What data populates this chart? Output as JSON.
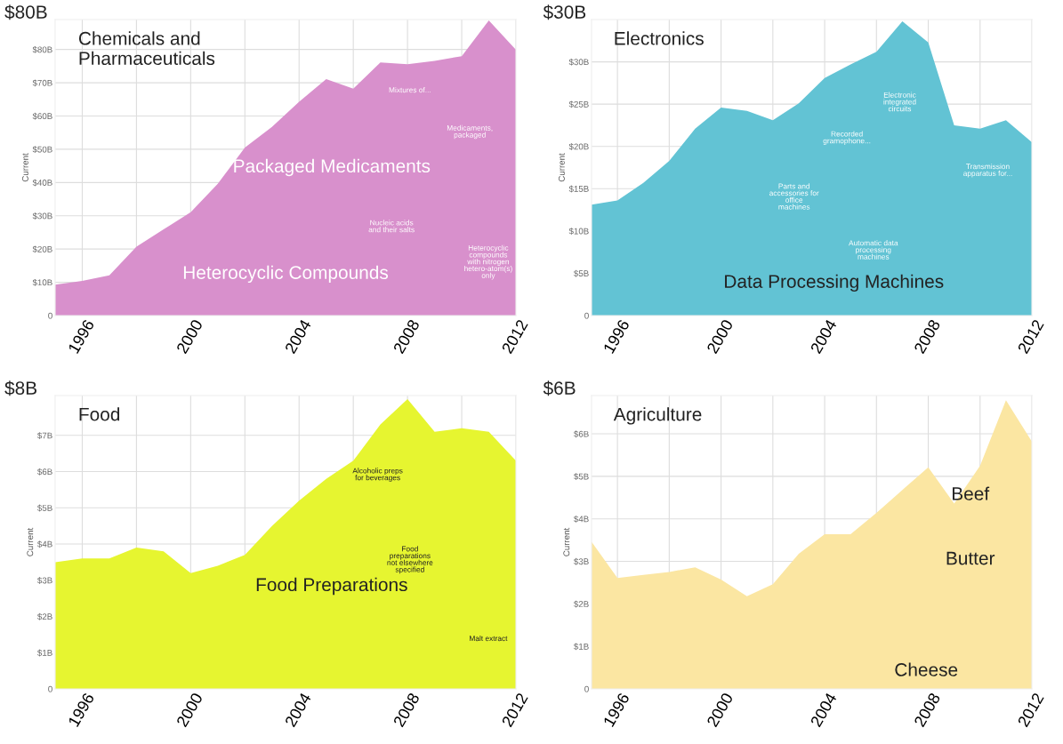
{
  "chart_data": [
    {
      "type": "area",
      "title": "Chemicals and\nPharmaceuticals",
      "ylabel": "Current",
      "x": [
        1995,
        1996,
        1997,
        1998,
        1999,
        2000,
        2001,
        2002,
        2003,
        2004,
        2005,
        2006,
        2007,
        2008,
        2009,
        2010,
        2011,
        2012
      ],
      "series": [
        {
          "color": "#d890cc",
          "values": [
            9.3,
            10.4,
            12.1,
            20.7,
            25.9,
            31.1,
            39.6,
            50.5,
            56.7,
            64.3,
            71.1,
            68.2,
            76.1,
            75.6,
            76.6,
            78.0,
            88.7,
            79.9
          ]
        }
      ],
      "xlim": [
        1995,
        2012
      ],
      "xticks": [
        1996,
        {
          "value": 1998,
          "label": null
        },
        2000,
        {
          "value": 2002,
          "label": null
        },
        2004,
        {
          "value": 2006,
          "label": null
        },
        2008,
        {
          "value": 2010,
          "label": null
        },
        2012
      ],
      "ylim": [
        0,
        89
      ],
      "yticks": [
        0,
        {
          "value": 10,
          "label": "$10B"
        },
        {
          "value": 20,
          "label": "$20B"
        },
        {
          "value": 30,
          "label": "$30B"
        },
        {
          "value": 40,
          "label": "$40B"
        },
        {
          "value": 50,
          "label": "$50B"
        },
        {
          "value": 60,
          "label": "$60B"
        },
        {
          "value": 70,
          "label": "$70B"
        },
        {
          "value": 80,
          "label": "$80B"
        }
      ],
      "grid": true,
      "legend": false,
      "annotations": [
        "$80B",
        "Packaged Medicaments",
        "Heterocyclic Compounds",
        "Mixtures of...",
        "Medicaments,\npackaged",
        "Nucleic acids\nand their salts",
        "Heterocyclic\ncompounds\nwith nitrogen\nhetero-atom(s)\nonly"
      ]
    },
    {
      "type": "area",
      "title": "Electronics",
      "ylabel": "Current",
      "x": [
        1995,
        1996,
        1997,
        1998,
        1999,
        2000,
        2001,
        2002,
        2003,
        2004,
        2005,
        2006,
        2007,
        2008,
        2009,
        2010,
        2011,
        2012
      ],
      "series": [
        {
          "color": "#62c3d4",
          "values": [
            13.1,
            13.6,
            15.7,
            18.3,
            22.1,
            24.6,
            24.2,
            23.1,
            25.1,
            28.1,
            29.7,
            31.2,
            34.8,
            32.3,
            22.5,
            22.1,
            23.1,
            20.5
          ]
        }
      ],
      "xlim": [
        1995,
        2012
      ],
      "xticks": [
        1996,
        {
          "value": 1998,
          "label": null
        },
        2000,
        {
          "value": 2002,
          "label": null
        },
        2004,
        {
          "value": 2006,
          "label": null
        },
        2008,
        {
          "value": 2010,
          "label": null
        },
        2012
      ],
      "ylim": [
        0,
        35
      ],
      "yticks": [
        0,
        {
          "value": 5,
          "label": "$5B"
        },
        {
          "value": 10,
          "label": "$10B"
        },
        {
          "value": 15,
          "label": "$15B"
        },
        {
          "value": 20,
          "label": "$20B"
        },
        {
          "value": 25,
          "label": "$25B"
        },
        {
          "value": 30,
          "label": "$30B"
        }
      ],
      "grid": true,
      "legend": false,
      "annotations": [
        "$30B",
        "Data Processing Machines",
        "Electronic\nintegrated\ncircuits",
        "Recorded\ngramophone...",
        "Parts and\naccessories for\noffice\nmachines",
        "Automatic data\nprocessing\nmachines",
        "Transmission\napparatus for..."
      ]
    },
    {
      "type": "area",
      "title": "Food",
      "ylabel": "Current",
      "x": [
        1995,
        1996,
        1997,
        1998,
        1999,
        2000,
        2001,
        2002,
        2003,
        2004,
        2005,
        2006,
        2007,
        2008,
        2009,
        2010,
        2011,
        2012
      ],
      "series": [
        {
          "color": "#e6f530",
          "values": [
            3.5,
            3.6,
            3.6,
            3.9,
            3.8,
            3.2,
            3.4,
            3.7,
            4.5,
            5.2,
            5.8,
            6.3,
            7.3,
            8.0,
            7.1,
            7.2,
            7.1,
            6.3
          ]
        }
      ],
      "xlim": [
        1995,
        2012
      ],
      "xticks": [
        1996,
        {
          "value": 1998,
          "label": null
        },
        2000,
        {
          "value": 2002,
          "label": null
        },
        2004,
        {
          "value": 2006,
          "label": null
        },
        2008,
        {
          "value": 2010,
          "label": null
        },
        2012
      ],
      "ylim": [
        0,
        8.1
      ],
      "yticks": [
        0,
        {
          "value": 1,
          "label": "$1B"
        },
        {
          "value": 2,
          "label": "$2B"
        },
        {
          "value": 3,
          "label": "$3B"
        },
        {
          "value": 4,
          "label": "$4B"
        },
        {
          "value": 5,
          "label": "$5B"
        },
        {
          "value": 6,
          "label": "$6B"
        },
        {
          "value": 7,
          "label": "$7B"
        }
      ],
      "grid": true,
      "legend": false,
      "annotations": [
        "$8B",
        "Food Preparations",
        "Alcoholic preps\nfor beverages",
        "Food\npreparations\nnot elsewhere\nspecified",
        "Malt extract"
      ]
    },
    {
      "type": "area",
      "title": "Agriculture",
      "ylabel": "Current",
      "x": [
        1995,
        1996,
        1997,
        1998,
        1999,
        2000,
        2001,
        2002,
        2003,
        2004,
        2005,
        2006,
        2007,
        2008,
        2009,
        2010,
        2011,
        2012
      ],
      "series": [
        {
          "color": "#fbe6a2",
          "values": [
            3.46,
            2.61,
            2.68,
            2.75,
            2.86,
            2.57,
            2.18,
            2.46,
            3.18,
            3.64,
            3.64,
            4.14,
            4.68,
            5.21,
            4.36,
            5.25,
            6.79,
            5.82
          ]
        }
      ],
      "xlim": [
        1995,
        2012
      ],
      "xticks": [
        1996,
        {
          "value": 1998,
          "label": null
        },
        2000,
        {
          "value": 2002,
          "label": null
        },
        2004,
        {
          "value": 2006,
          "label": null
        },
        2008,
        {
          "value": 2010,
          "label": null
        },
        2012
      ],
      "ylim": [
        0,
        6.9
      ],
      "yticks": [
        0,
        {
          "value": 1,
          "label": "$1B"
        },
        {
          "value": 2,
          "label": "$2B"
        },
        {
          "value": 3,
          "label": "$3B"
        },
        {
          "value": 4,
          "label": "$4B"
        },
        {
          "value": 5,
          "label": "$5B"
        },
        {
          "value": 6,
          "label": "$6B"
        }
      ],
      "grid": true,
      "legend": false,
      "annotations": [
        "$6B",
        "Beef",
        "Butter",
        "Cheese"
      ]
    }
  ]
}
